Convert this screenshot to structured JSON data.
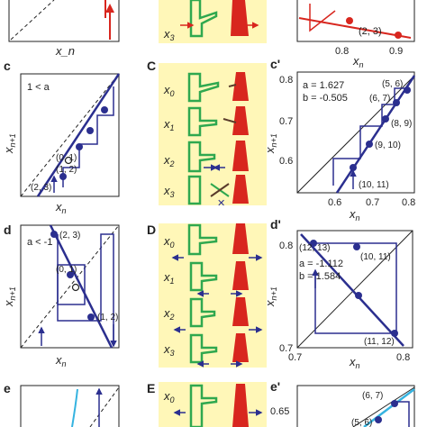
{
  "colors": {
    "cobweb": "#2b2f8f",
    "map_line": "#2b2f8f",
    "map_line_cyan": "#35b3e0",
    "diagonal": "#222222",
    "figure_green": "#2fa84f",
    "figure_red": "#d8261e",
    "arrow_blue": "#2b2f8f",
    "panel_bg_yellow": "#fff7b8",
    "top_red": "#d8261e"
  },
  "top_row": {
    "left_axis": "x_n",
    "mid_label_var": "x",
    "mid_label_sub": "3",
    "right_axis": "x_n",
    "right_ticks": [
      "0.8",
      "0.9"
    ],
    "right_point": "(2, 3)"
  },
  "rows": [
    {
      "left": {
        "letter": "c",
        "condition": "1 < a",
        "ylabel_var": "x",
        "ylabel_sub": "n+1",
        "xlabel_var": "x",
        "xlabel_sub": "n",
        "points": [
          "(0, 1)",
          "(1, 2)",
          "(2, 3)"
        ]
      },
      "middle": {
        "letter": "C",
        "states": [
          {
            "var": "x",
            "sub": "0"
          },
          {
            "var": "x",
            "sub": "1"
          },
          {
            "var": "x",
            "sub": "2"
          },
          {
            "var": "x",
            "sub": "3"
          }
        ]
      },
      "right": {
        "letter": "c'",
        "param_a": "a = 1.627",
        "param_b": "b = -0.505",
        "ylabel_var": "x",
        "ylabel_sub": "n+1",
        "xlabel_var": "x",
        "xlabel_sub": "n",
        "yticks": [
          "0.8",
          "0.7",
          "0.6"
        ],
        "xticks": [
          "0.6",
          "0.7",
          "0.8"
        ],
        "points": [
          "(5, 6)",
          "(6, 7)",
          "(8, 9)",
          "(9, 10)",
          "(10, 11)"
        ]
      }
    },
    {
      "left": {
        "letter": "d",
        "condition": "a < -1",
        "ylabel_var": "x",
        "ylabel_sub": "n+1",
        "xlabel_var": "x",
        "xlabel_sub": "n",
        "points": [
          "(2, 3)",
          "(0, 1)",
          "(1, 2)"
        ]
      },
      "middle": {
        "letter": "D",
        "states": [
          {
            "var": "x",
            "sub": "0"
          },
          {
            "var": "x",
            "sub": "1"
          },
          {
            "var": "x",
            "sub": "2"
          },
          {
            "var": "x",
            "sub": "3"
          }
        ]
      },
      "right": {
        "letter": "d'",
        "param_a": "a = -1.112",
        "param_b": "b = 1.584",
        "ylabel_var": "x",
        "ylabel_sub": "n+1",
        "xlabel_var": "x",
        "xlabel_sub": "n",
        "yticks": [
          "0.8",
          "0.7"
        ],
        "xticks": [
          "0.7",
          "0.8"
        ],
        "points": [
          "(12, 13)",
          "(10, 11)",
          "(11, 12)"
        ]
      }
    },
    {
      "left": {
        "letter": "e"
      },
      "middle": {
        "letter": "E",
        "states": [
          {
            "var": "x",
            "sub": "0"
          }
        ]
      },
      "right": {
        "letter": "e'",
        "yticks": [
          "0.65"
        ],
        "points": [
          "(6, 7)",
          "(5, 6)"
        ]
      }
    }
  ]
}
